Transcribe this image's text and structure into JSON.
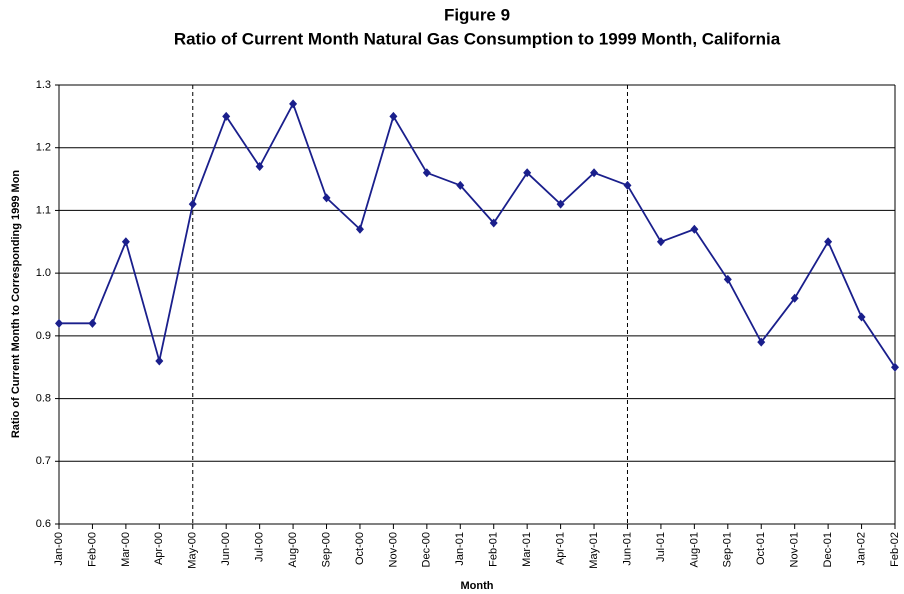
{
  "chart_data": {
    "type": "line",
    "title": "Figure 9",
    "subtitle": "Ratio of Current Month Natural Gas Consumption to 1999 Month, California",
    "x_label": "Month",
    "y_label": "Ratio of Current Month to Corresponding 1999 Mon",
    "categories": [
      "Jan-00",
      "Feb-00",
      "Mar-00",
      "Apr-00",
      "May-00",
      "Jun-00",
      "Jul-00",
      "Aug-00",
      "Sep-00",
      "Oct-00",
      "Nov-00",
      "Dec-00",
      "Jan-01",
      "Feb-01",
      "Mar-01",
      "Apr-01",
      "May-01",
      "Jun-01",
      "Jul-01",
      "Aug-01",
      "Sep-01",
      "Oct-01",
      "Nov-01",
      "Dec-01",
      "Jan-02",
      "Feb-02"
    ],
    "series": [
      {
        "color": "#1a1f8c",
        "values": [
          0.92,
          0.92,
          1.05,
          0.86,
          1.11,
          1.25,
          1.17,
          1.27,
          1.12,
          1.07,
          1.25,
          1.16,
          1.14,
          1.08,
          1.16,
          1.11,
          1.16,
          1.14,
          1.05,
          1.07,
          0.99,
          0.89,
          0.96,
          1.05,
          0.93,
          0.85
        ]
      }
    ],
    "ylim": [
      0.6,
      1.3
    ],
    "yticks": [
      0.6,
      0.7,
      0.8,
      0.9,
      {
        "value": 1,
        "label": "1.0"
      },
      1.1,
      1.2,
      1.3
    ],
    "grid": true,
    "reference_lines": [
      "May-00",
      "Jun-01"
    ]
  }
}
